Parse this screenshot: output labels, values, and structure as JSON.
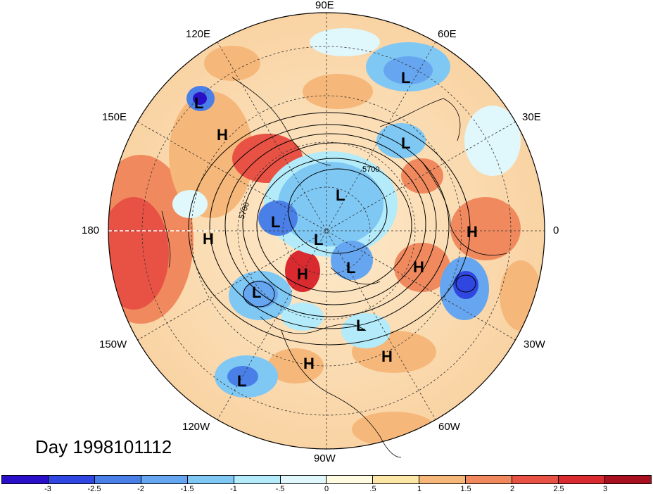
{
  "title": "Day 1998101112",
  "longitude_labels": {
    "lon_90e": "90E",
    "lon_120e": "120E",
    "lon_60e": "60E",
    "lon_150e": "150E",
    "lon_30e": "30E",
    "lon_180": "180",
    "lon_0": "0",
    "lon_150w": "150W",
    "lon_30w": "30W",
    "lon_120w": "120W",
    "lon_60w": "60W",
    "lon_90w": "90W"
  },
  "contour_label": "5700",
  "pressure_centers": [
    {
      "id": "L",
      "region": "west-pacific"
    },
    {
      "id": "L",
      "region": "siberia"
    },
    {
      "id": "H",
      "region": "north-pacific"
    },
    {
      "id": "L",
      "region": "scandinavia"
    },
    {
      "id": "L",
      "region": "arctic-1"
    },
    {
      "id": "L",
      "region": "arctic-2"
    },
    {
      "id": "L",
      "region": "arctic-3"
    },
    {
      "id": "H",
      "region": "dateline"
    },
    {
      "id": "H",
      "region": "europe"
    },
    {
      "id": "H",
      "region": "east-atlantic"
    },
    {
      "id": "H",
      "region": "alaska"
    },
    {
      "id": "L",
      "region": "hudson"
    },
    {
      "id": "L",
      "region": "gulf-of-alaska"
    },
    {
      "id": "L",
      "region": "labrador"
    },
    {
      "id": "H",
      "region": "us-central"
    },
    {
      "id": "H",
      "region": "mid-atlantic"
    },
    {
      "id": "L",
      "region": "east-pacific"
    }
  ],
  "colorbar": {
    "colors": [
      "#2a0fc8",
      "#2f46e0",
      "#4a7fe8",
      "#66a6f0",
      "#7fc8f4",
      "#b3ebfa",
      "#e0f7fb",
      "#fffbe0",
      "#fbe6a6",
      "#f6b87a",
      "#f08a5e",
      "#e85244",
      "#d92a30",
      "#a81020"
    ],
    "tick_labels": [
      "-3",
      "-2.5",
      "-2",
      "-1.5",
      "-1",
      "-.5",
      "0",
      ".5",
      "1",
      "1.5",
      "2",
      "2.5",
      "3"
    ]
  }
}
